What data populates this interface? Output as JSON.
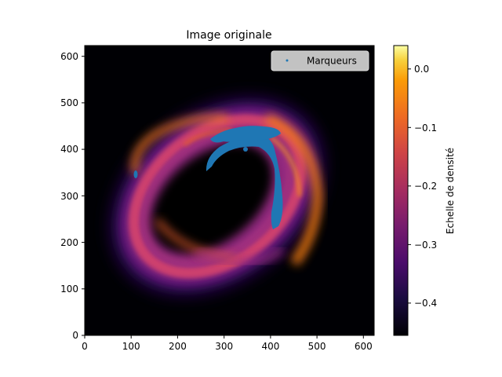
{
  "chart_data": {
    "type": "heatmap",
    "title": "Image originale",
    "xlabel": "",
    "ylabel": "",
    "xlim": [
      0,
      623
    ],
    "ylim": [
      0,
      623
    ],
    "xticks": [
      0,
      100,
      200,
      300,
      400,
      500,
      600
    ],
    "yticks": [
      0,
      100,
      200,
      300,
      400,
      500,
      600
    ],
    "colormap": "inferno",
    "colorbar": {
      "label": "Echelle de densité",
      "range": [
        -0.455,
        0.04
      ],
      "ticks": [
        0.0,
        -0.1,
        -0.2,
        -0.3,
        -0.4
      ],
      "tick_labels": [
        "0.0",
        "−0.1",
        "−0.2",
        "−0.3",
        "−0.4"
      ]
    },
    "legend": {
      "position": "top-right",
      "entries": [
        "Marqueurs"
      ]
    },
    "background_color": "#000004",
    "series": [
      {
        "name": "Marqueurs",
        "type": "scatter",
        "color": "#1f77b4",
        "regions": [
          {
            "shape": "spiral arm",
            "path": [
              [
                265,
                352
              ],
              [
                268,
                372
              ],
              [
                285,
                395
              ],
              [
                310,
                415
              ],
              [
                335,
                425
              ],
              [
                350,
                418
              ],
              [
                360,
                395
              ],
              [
                365,
                360
              ],
              [
                362,
                320
              ],
              [
                358,
                285
              ],
              [
                350,
                255
              ],
              [
                345,
                235
              ],
              [
                345,
                230
              ]
            ]
          },
          {
            "shape": "clump",
            "center": [
              320,
              440
            ],
            "extent": [
              [
                270,
                450
              ],
              [
                380,
                425
              ]
            ]
          },
          {
            "shape": "isolated clump",
            "center": [
              110,
              345
            ],
            "extent": [
              [
                108,
                352
              ],
              [
                113,
                338
              ]
            ]
          }
        ]
      }
    ],
    "density_structure": {
      "shape": "tilted elliptical ring",
      "center": [
        285,
        310
      ],
      "outer_extent_x": [
        95,
        505
      ],
      "outer_extent_y": [
        115,
        500
      ],
      "inner_void_extent_x": [
        190,
        360
      ],
      "inner_void_extent_y": [
        190,
        400
      ],
      "peak_values": "orange (about -0.10) along the upper-right arc and lower-left arc",
      "edge_values": "purple (about -0.30) toward the outer rim"
    }
  }
}
